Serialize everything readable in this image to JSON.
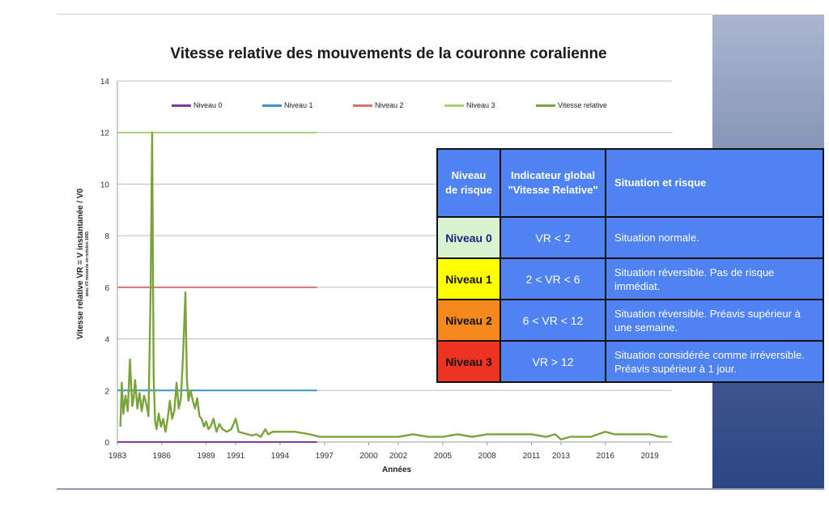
{
  "chart_data": {
    "type": "line",
    "title": "Vitesse relative des mouvements de la couronne coralienne",
    "xlabel": "Années",
    "ylabel": "Vitesse relative VR = V instantanée / V0",
    "ylabel_note": "avec V0 mesurée en octobre 1985",
    "ylim": [
      0,
      14
    ],
    "yticks": [
      0,
      2,
      4,
      6,
      8,
      10,
      12,
      14
    ],
    "xlim": [
      1983,
      2020.5
    ],
    "xticks": [
      "1983",
      "1986",
      "1989",
      "1991",
      "1994",
      "1997",
      "2000",
      "2002",
      "2005",
      "2008",
      "2011",
      "2013",
      "2016",
      "2019"
    ],
    "grid": true,
    "legend_position": "top",
    "series": [
      {
        "name": "Niveau 0",
        "color": "#7b3fa0",
        "x": [
          1983,
          1996.5
        ],
        "y": [
          0,
          0
        ]
      },
      {
        "name": "Niveau 1",
        "color": "#3b95c4",
        "x": [
          1983,
          1996.5
        ],
        "y": [
          2,
          2
        ]
      },
      {
        "name": "Niveau 2",
        "color": "#d9736c",
        "x": [
          1983,
          1996.5
        ],
        "y": [
          6,
          6
        ]
      },
      {
        "name": "Niveau 3",
        "color": "#a8d07a",
        "x": [
          1983,
          1996.5
        ],
        "y": [
          12,
          12
        ]
      },
      {
        "name": "Vitesse relative",
        "color": "#7aa33a",
        "x": [
          1983.2,
          1983.3,
          1983.4,
          1983.55,
          1983.7,
          1983.85,
          1984.0,
          1984.1,
          1984.2,
          1984.35,
          1984.5,
          1984.65,
          1984.8,
          1984.95,
          1985.1,
          1985.25,
          1985.35,
          1985.45,
          1985.55,
          1985.65,
          1985.8,
          1985.95,
          1986.1,
          1986.25,
          1986.4,
          1986.55,
          1986.7,
          1986.85,
          1987.0,
          1987.15,
          1987.3,
          1987.45,
          1987.6,
          1987.7,
          1987.8,
          1987.95,
          1988.1,
          1988.25,
          1988.4,
          1988.55,
          1988.7,
          1988.85,
          1989.0,
          1989.15,
          1989.3,
          1989.5,
          1989.7,
          1989.9,
          1990.1,
          1990.4,
          1990.7,
          1991.0,
          1991.2,
          1991.5,
          1991.8,
          1992.1,
          1992.4,
          1992.7,
          1993.0,
          1993.2,
          1993.5,
          1994.0,
          1995.0,
          1996.0,
          1996.7,
          1997.5,
          1999.0,
          2001.0,
          2002.0,
          2003.0,
          2004.0,
          2005.0,
          2006.0,
          2007.0,
          2008.0,
          2009.0,
          2010.0,
          2011.0,
          2012.0,
          2012.6,
          2013.0,
          2013.6,
          2014.0,
          2015.0,
          2016.0,
          2016.6,
          2017.0,
          2018.0,
          2019.0,
          2019.7,
          2020.2
        ],
        "y": [
          0.6,
          2.3,
          1.1,
          1.8,
          1.2,
          3.2,
          1.4,
          1.7,
          2.4,
          1.3,
          1.9,
          1.2,
          1.8,
          1.5,
          1.0,
          6.0,
          12.0,
          2.5,
          0.8,
          0.5,
          1.1,
          0.6,
          0.9,
          0.4,
          0.9,
          1.6,
          0.9,
          1.2,
          2.3,
          1.3,
          1.7,
          3.5,
          5.8,
          2.4,
          1.6,
          2.0,
          1.6,
          1.3,
          1.7,
          1.0,
          0.9,
          0.6,
          0.8,
          0.5,
          0.6,
          0.9,
          0.4,
          0.7,
          0.5,
          0.4,
          0.5,
          0.9,
          0.4,
          0.35,
          0.3,
          0.25,
          0.3,
          0.2,
          0.5,
          0.3,
          0.4,
          0.4,
          0.4,
          0.3,
          0.2,
          0.2,
          0.2,
          0.2,
          0.2,
          0.3,
          0.2,
          0.2,
          0.3,
          0.2,
          0.3,
          0.3,
          0.3,
          0.3,
          0.2,
          0.3,
          0.1,
          0.2,
          0.2,
          0.2,
          0.4,
          0.3,
          0.3,
          0.3,
          0.3,
          0.2,
          0.2
        ]
      }
    ]
  },
  "table": {
    "headers": [
      "Niveau de risque",
      "Indicateur global \"Vitesse Relative\"",
      "Situation et risque"
    ],
    "rows": [
      {
        "level": "Niveau 0",
        "indicator": "VR < 2",
        "situation": "Situation normale.",
        "color": "#d9f2d0",
        "text_color": "#1a237e"
      },
      {
        "level": "Niveau 1",
        "indicator": "2 < VR < 6",
        "situation": "Situation réversible. Pas de risque immédiat.",
        "color": "#ffff00",
        "text_color": "#111111"
      },
      {
        "level": "Niveau 2",
        "indicator": "6 < VR < 12",
        "situation": "Situation réversible. Préavis supérieur à une semaine.",
        "color": "#f5891e",
        "text_color": "#111111"
      },
      {
        "level": "Niveau 3",
        "indicator": "VR > 12",
        "situation": "Situation considérée comme irréversible. Préavis supérieur à 1 jour.",
        "color": "#ee3322",
        "text_color": "#111111"
      }
    ]
  }
}
